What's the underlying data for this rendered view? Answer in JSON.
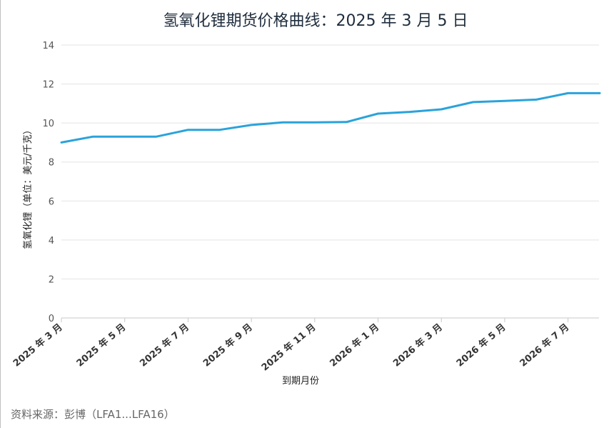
{
  "chart_data": {
    "type": "line",
    "title": "氢氧化锂期货价格曲线：2025 年 3 月 5 日",
    "xlabel": "到期月份",
    "ylabel": "氢氧化锂（单位：美元/千克）",
    "ylim": [
      0,
      14
    ],
    "yticks": [
      "0",
      "2",
      "4",
      "6",
      "8",
      "10",
      "12",
      "14"
    ],
    "x_tick_labels": [
      "2025 年 3 月",
      "2025 年 5 月",
      "2025 年 7 月",
      "2025 年 9 月",
      "2025 年 11 月",
      "2026 年 1 月",
      "2026 年 3 月",
      "2026 年 5 月",
      "2026 年 7 月"
    ],
    "x": [
      "2025-03",
      "2025-04",
      "2025-05",
      "2025-06",
      "2025-07",
      "2025-08",
      "2025-09",
      "2025-10",
      "2025-11",
      "2025-12",
      "2026-01",
      "2026-02",
      "2026-03",
      "2026-04",
      "2026-05",
      "2026-06",
      "2026-07",
      "2026-08"
    ],
    "series": [
      {
        "values": [
          9.0,
          9.3,
          9.3,
          9.3,
          9.65,
          9.65,
          9.9,
          10.03,
          10.03,
          10.05,
          10.48,
          10.57,
          10.7,
          11.07,
          11.13,
          11.2,
          11.53,
          11.53
        ],
        "color": "#2aa3db"
      }
    ],
    "grid": true,
    "legend": "none"
  },
  "footer": {
    "source": "资料来源：彭博（LFA1...LFA16）"
  }
}
